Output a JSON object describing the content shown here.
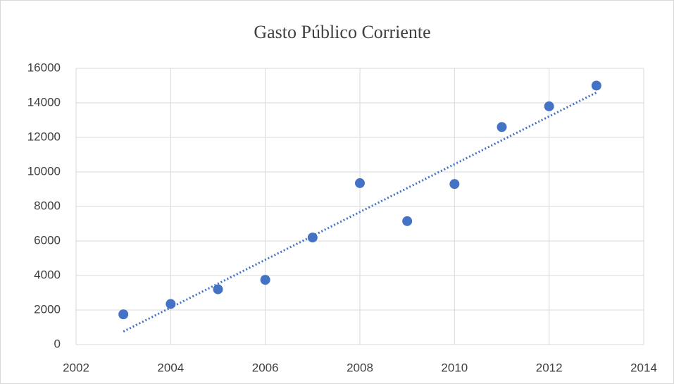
{
  "chart_data": {
    "type": "scatter",
    "title": "Gasto Público Corriente",
    "x": [
      2003,
      2004,
      2005,
      2006,
      2007,
      2008,
      2009,
      2010,
      2011,
      2012,
      2013
    ],
    "values": [
      1750,
      2350,
      3200,
      3750,
      6200,
      9350,
      7150,
      9300,
      12600,
      13800,
      15000
    ],
    "color": "#4472c4",
    "trendline": "linear",
    "xlim": [
      2002,
      2014
    ],
    "xticks": [
      2002,
      2004,
      2006,
      2008,
      2010,
      2012,
      2014
    ],
    "ylim": [
      0,
      16000
    ],
    "yticks": [
      0,
      2000,
      4000,
      6000,
      8000,
      10000,
      12000,
      14000,
      16000
    ],
    "grid": true
  }
}
